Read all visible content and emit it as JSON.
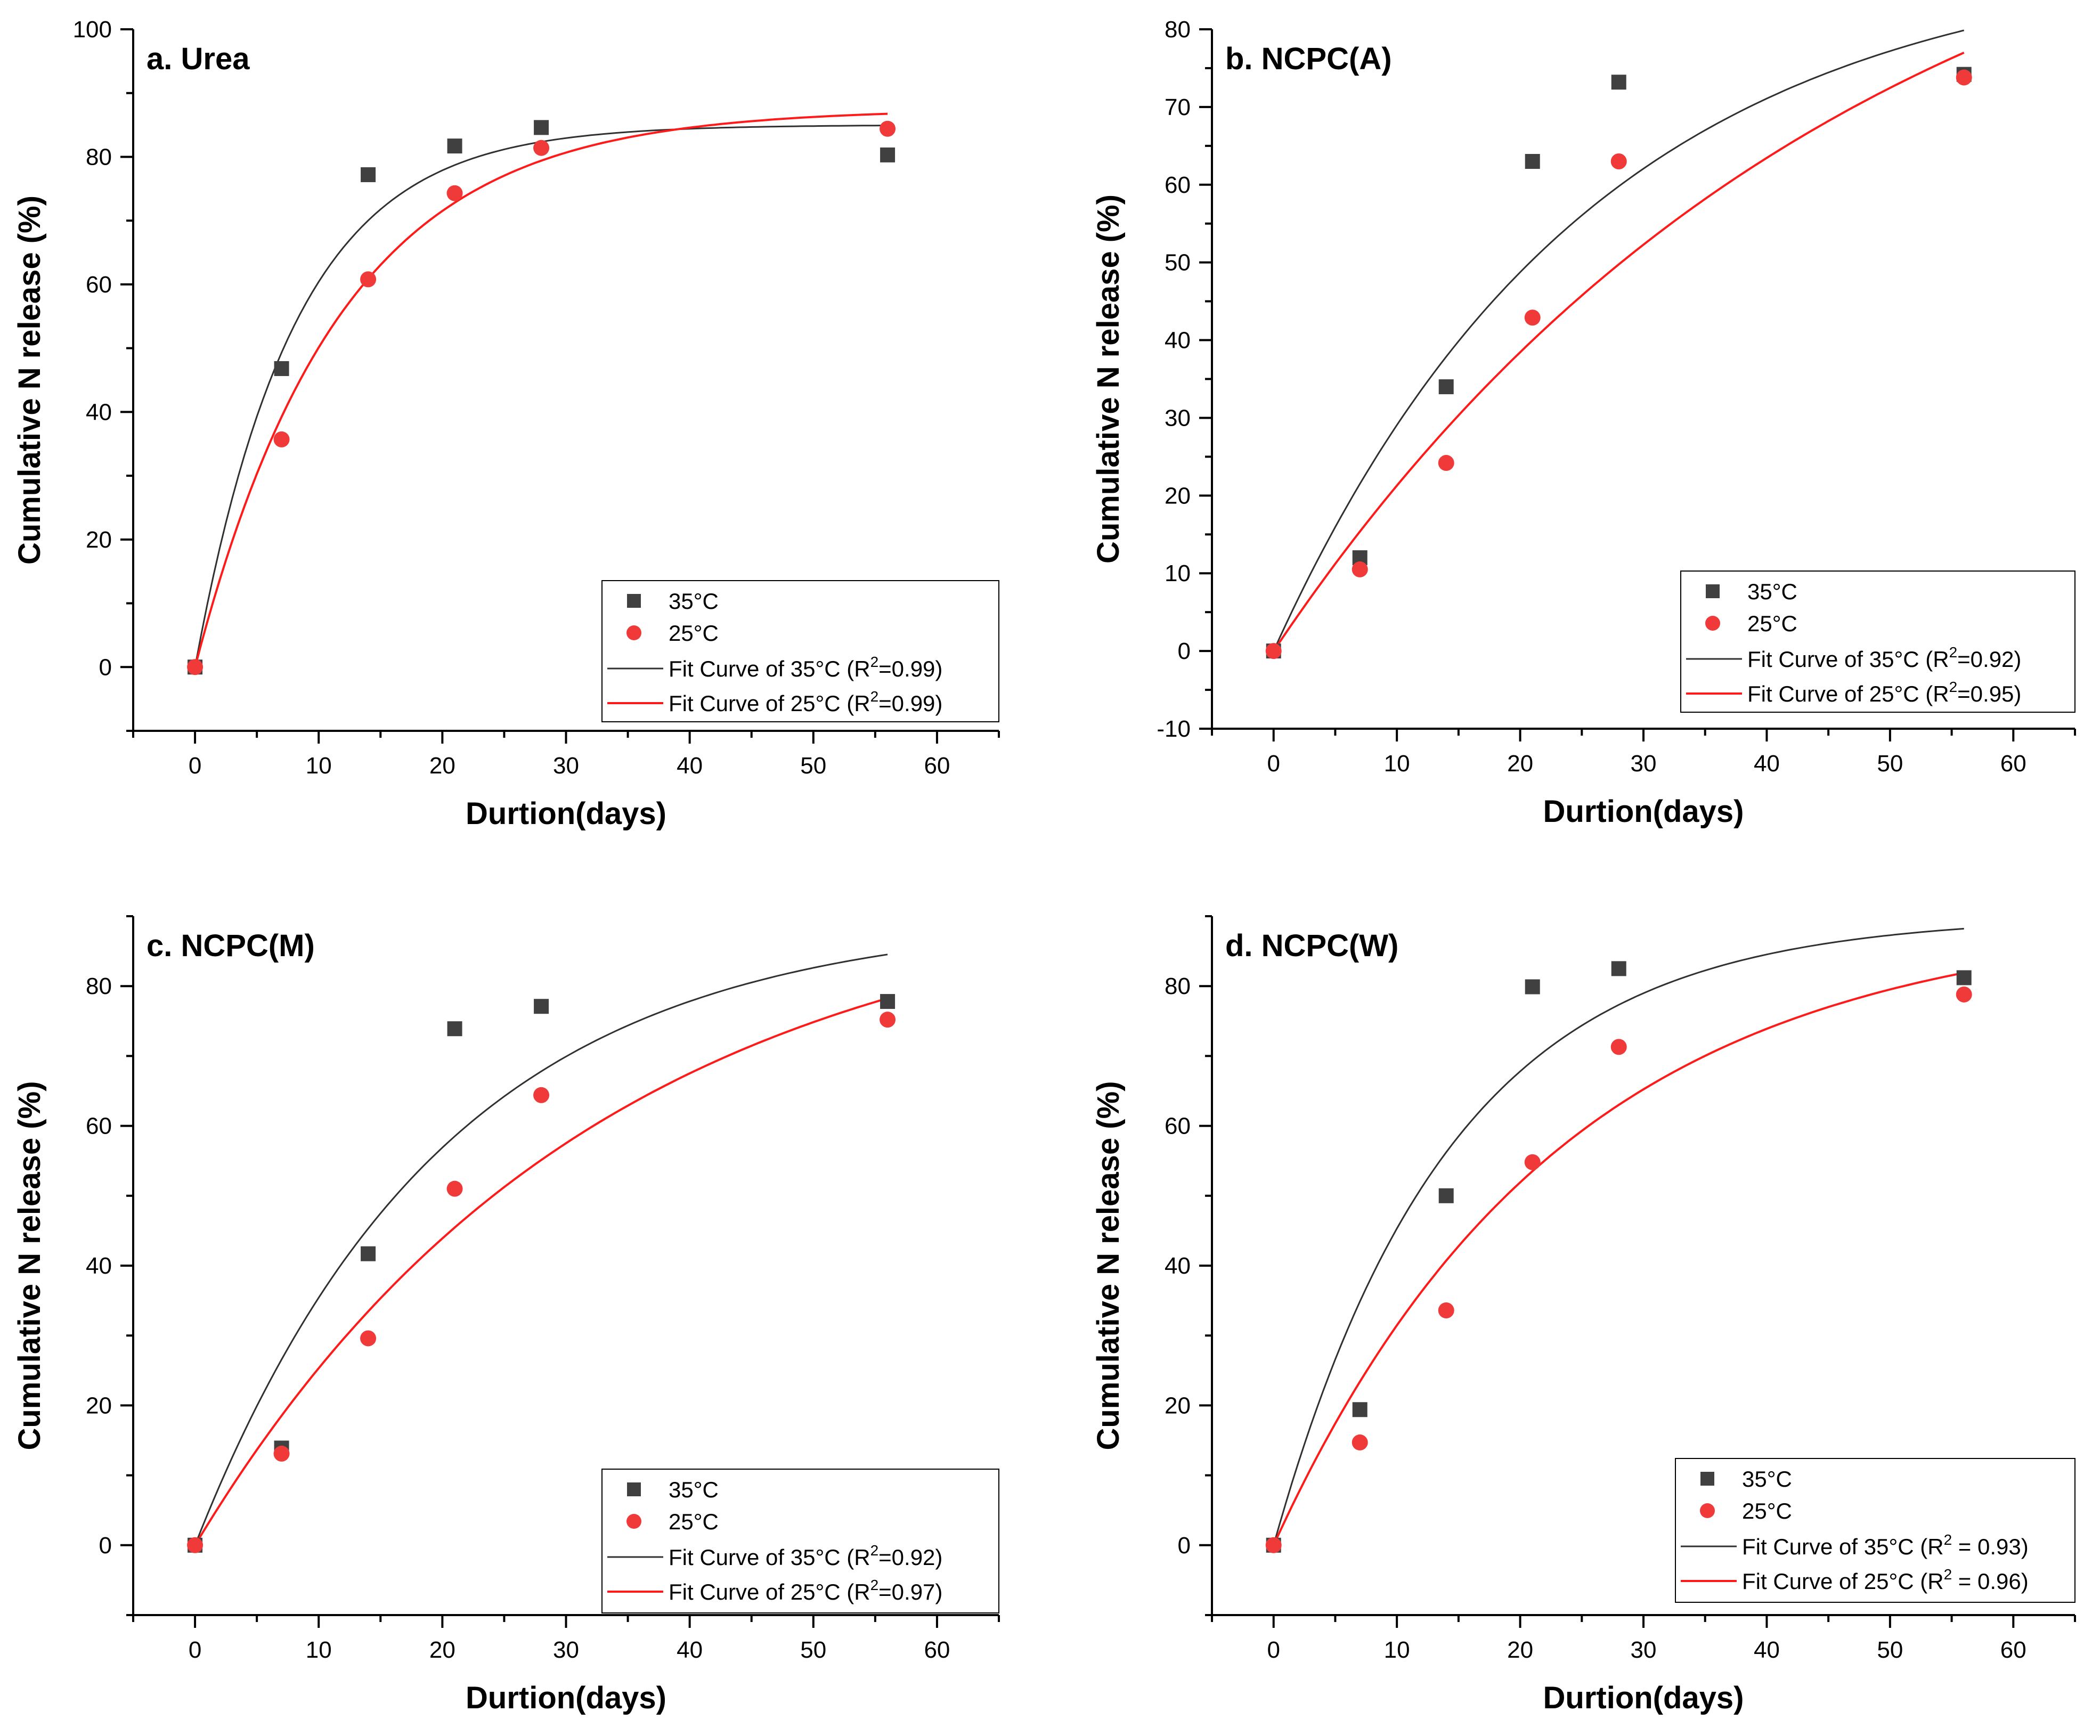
{
  "figure": {
    "colors": {
      "s35": "#404040",
      "s25": "#f03a3a",
      "fit35": "#303030",
      "fit25": "#ff1a1a",
      "axis": "#000000"
    }
  },
  "chart_data": [
    {
      "type": "scatter",
      "title": "a. Urea",
      "xlabel": "Durtion(days)",
      "ylabel": "Cumulative N release (%)",
      "xlim": [
        -5,
        65
      ],
      "ylim": [
        -10,
        100
      ],
      "xticks": [
        0,
        10,
        20,
        30,
        40,
        50,
        60
      ],
      "yticks": [
        0,
        20,
        40,
        60,
        80,
        100
      ],
      "x": [
        0,
        7,
        14,
        21,
        28,
        56
      ],
      "series": [
        {
          "name": "35°C",
          "marker": "square",
          "values": [
            0,
            46.8,
            77.2,
            81.7,
            84.6,
            80.3
          ]
        },
        {
          "name": "25°C",
          "marker": "circle",
          "values": [
            0,
            35.7,
            60.8,
            74.3,
            81.4,
            84.4
          ]
        }
      ],
      "fits": [
        {
          "name_prefix": "Fit Curve of 35°C (R",
          "name_suffix": "=0.99)",
          "A": 85.0,
          "k": 0.124
        },
        {
          "name_prefix": "Fit Curve of 25°C (R",
          "name_suffix": "=0.99)",
          "A": 87.5,
          "k": 0.085
        }
      ],
      "legend": "bottom-right"
    },
    {
      "type": "scatter",
      "title": "b. NCPC(A)",
      "xlabel": "Durtion(days)",
      "ylabel": "Cumulative N release (%)",
      "xlim": [
        -5,
        65
      ],
      "ylim": [
        -10,
        80
      ],
      "xticks": [
        0,
        10,
        20,
        30,
        40,
        50,
        60
      ],
      "yticks": [
        -10,
        0,
        10,
        20,
        30,
        40,
        50,
        60,
        70,
        80
      ],
      "x": [
        0,
        7,
        14,
        21,
        28,
        56
      ],
      "series": [
        {
          "name": "35°C",
          "marker": "square",
          "values": [
            0,
            12,
            34,
            63,
            73.2,
            74.2
          ]
        },
        {
          "name": "25°C",
          "marker": "circle",
          "values": [
            0,
            10.5,
            24.2,
            42.9,
            63,
            73.8
          ]
        }
      ],
      "fits": [
        {
          "name_prefix": "Fit Curve of 35°C (R",
          "name_suffix": "=0.92)",
          "A": 90.0,
          "k": 0.039
        },
        {
          "name_prefix": "Fit Curve of 25°C (R",
          "name_suffix": "=0.95)",
          "A": 110.0,
          "k": 0.0215
        }
      ],
      "legend": "bottom-right"
    },
    {
      "type": "scatter",
      "title": "c. NCPC(M)",
      "xlabel": "Durtion(days)",
      "ylabel": "Cumulative N release (%)",
      "xlim": [
        -5,
        65
      ],
      "ylim": [
        -10,
        90
      ],
      "xticks": [
        0,
        10,
        20,
        30,
        40,
        50,
        60
      ],
      "yticks": [
        0,
        20,
        40,
        60,
        80
      ],
      "x": [
        0,
        7,
        14,
        21,
        28,
        56
      ],
      "series": [
        {
          "name": "35°C",
          "marker": "square",
          "values": [
            0,
            13.9,
            41.7,
            73.9,
            77.1,
            77.8
          ]
        },
        {
          "name": "25°C",
          "marker": "circle",
          "values": [
            0,
            13.1,
            29.6,
            51,
            64.4,
            75.2
          ]
        }
      ],
      "fits": [
        {
          "name_prefix": "Fit Curve of 35°C (R",
          "name_suffix": "=0.92)",
          "A": 90.0,
          "k": 0.05
        },
        {
          "name_prefix": "Fit Curve of 25°C (R",
          "name_suffix": "=0.97)",
          "A": 95.0,
          "k": 0.031
        }
      ],
      "legend": "bottom-right"
    },
    {
      "type": "scatter",
      "title": "d. NCPC(W)",
      "xlabel": "Durtion(days)",
      "ylabel": "Cumulative N release (%)",
      "xlim": [
        -5,
        65
      ],
      "ylim": [
        -10,
        90
      ],
      "xticks": [
        0,
        10,
        20,
        30,
        40,
        50,
        60
      ],
      "yticks": [
        0,
        20,
        40,
        60,
        80
      ],
      "x": [
        0,
        7,
        14,
        21,
        28,
        56
      ],
      "series": [
        {
          "name": "35°C",
          "marker": "square",
          "values": [
            0,
            19.4,
            50,
            79.9,
            82.5,
            81.2
          ]
        },
        {
          "name": "25°C",
          "marker": "circle",
          "values": [
            0,
            14.7,
            33.6,
            54.8,
            71.3,
            78.8
          ]
        }
      ],
      "fits": [
        {
          "name_prefix": "Fit Curve of 35°C (R",
          "name_suffix": " = 0.93)",
          "A": 90.0,
          "k": 0.07
        },
        {
          "name_prefix": "Fit Curve of 25°C (R",
          "name_suffix": " = 0.96)",
          "A": 90.0,
          "k": 0.043
        }
      ],
      "legend": "bottom-right"
    }
  ]
}
